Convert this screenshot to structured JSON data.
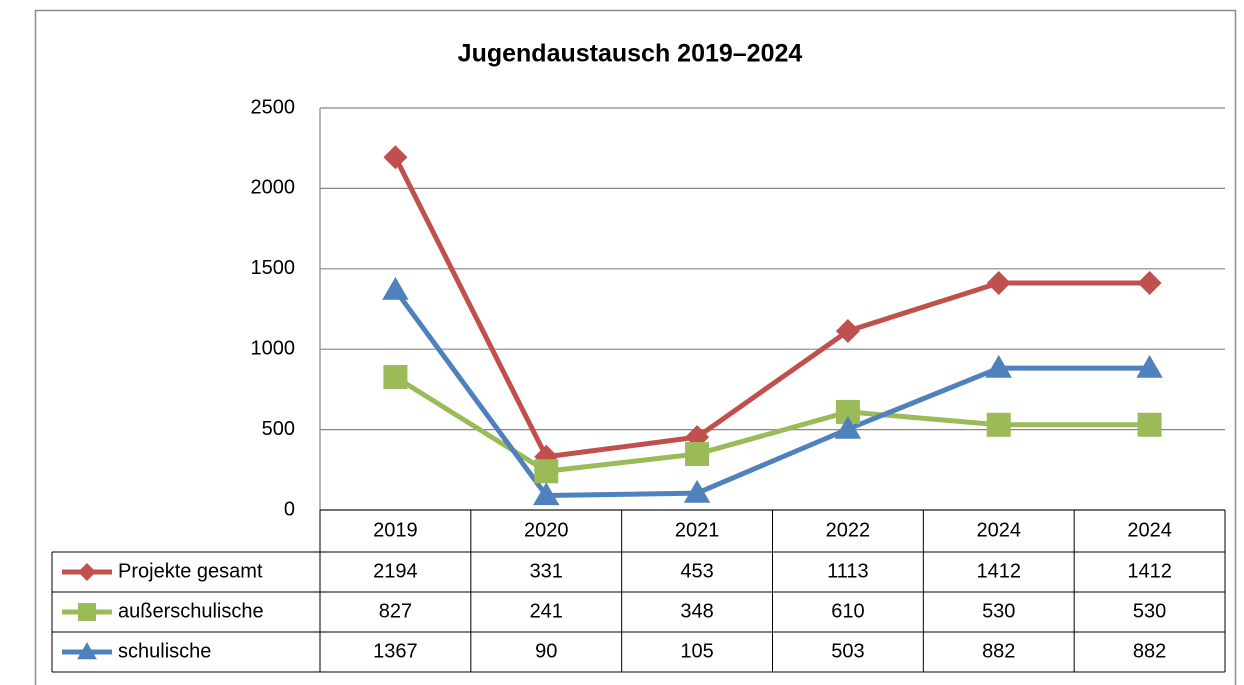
{
  "chart_data": {
    "type": "line",
    "title": "Jugendaustausch 2019–2024",
    "categories": [
      "2019",
      "2020",
      "2021",
      "2022",
      "2024",
      "2024"
    ],
    "series": [
      {
        "name": "Projekte gesamt",
        "color": "#c0504d",
        "marker": "diamond",
        "values": [
          2194,
          331,
          453,
          1113,
          1412,
          1412
        ]
      },
      {
        "name": "außerschulische",
        "color": "#9bbb59",
        "marker": "square",
        "values": [
          827,
          241,
          348,
          610,
          530,
          530
        ]
      },
      {
        "name": "schulische",
        "color": "#4f81bd",
        "marker": "triangle",
        "values": [
          1367,
          90,
          105,
          503,
          882,
          882
        ]
      }
    ],
    "ylim": [
      0,
      2500
    ],
    "yticks": [
      0,
      500,
      1000,
      1500,
      2000,
      2500
    ],
    "grid": true,
    "data_table": true
  }
}
